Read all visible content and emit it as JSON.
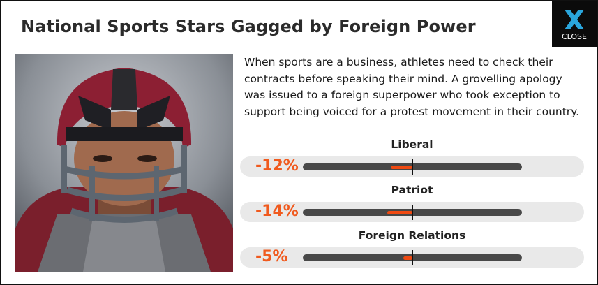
{
  "event": {
    "title": "National Sports Stars Gagged by Foreign Power",
    "description": "When sports are a business, athletes need to check their contracts before speaking their mind. A grovelling apology was issued to a foreign superpower who took exception to support being voiced for a protest movement in their country.",
    "portrait_icon": "football-player-helmet-portrait"
  },
  "close": {
    "label": "CLOSE",
    "icon": "close-x-icon"
  },
  "effects": [
    {
      "label": "Liberal",
      "value_text": "-12%",
      "value": -12
    },
    {
      "label": "Patriot",
      "value_text": "-14%",
      "value": -14
    },
    {
      "label": "Foreign Relations",
      "value_text": "-5%",
      "value": -5
    }
  ],
  "colors": {
    "negative": "#f04a12",
    "close_icon": "#2aa6dd",
    "bar_track": "#484848"
  }
}
